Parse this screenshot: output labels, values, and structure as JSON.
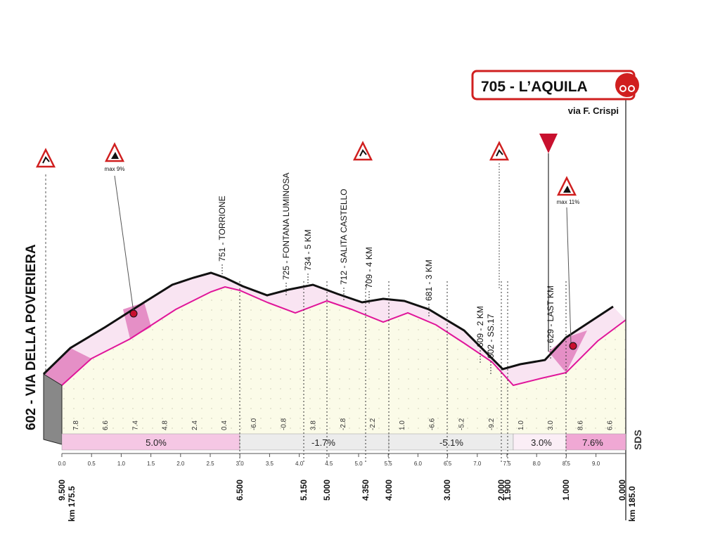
{
  "finish": {
    "label": "705 - L’AQUILA",
    "street": "via F. Crispi"
  },
  "start": {
    "label": "602 - VIA DELLA POVERIERA"
  },
  "climb_signs": [
    "max 9%",
    "max 11%"
  ],
  "waypoints": [
    "751 - TORRIONE",
    "725 - FONTANA LUMINOSA",
    "734 - 5 KM",
    "712 - SALITA CASTELLO",
    "709 - 4 KM",
    "681 - 3 KM",
    "609 - 2 KM",
    "602 - SS.17",
    "629 - LAST KM"
  ],
  "gradients": [
    "7.8",
    "6.6",
    "7.4",
    "4.8",
    "2.4",
    "0.4",
    "-6.0",
    "-0.8",
    "3.8",
    "-2.8",
    "-2.2",
    "1.0",
    "-6.6",
    "-5.2",
    "-9.2",
    "1.0",
    "3.0",
    "8.6",
    "6.6"
  ],
  "segments": [
    "5.0%",
    "-1.7%",
    "-5.1%",
    "3.0%",
    "7.6%"
  ],
  "km_scale": [
    "0.0",
    "0.5",
    "1.0",
    "1.5",
    "2.0",
    "2.5",
    "3.0",
    "3.5",
    "4.0",
    "4.5",
    "5.0",
    "5.5",
    "6.0",
    "6.5",
    "7.0",
    "7.5",
    "8.0",
    "8.5",
    "9.0"
  ],
  "distances": [
    "9.500",
    "6.500",
    "5.150",
    "5.000",
    "4.350",
    "4.000",
    "3.000",
    "2.000",
    "1.900",
    "1.000",
    "0.000"
  ],
  "km_marks": [
    "km 175.5",
    "km 185.0"
  ],
  "logo": "SDS"
}
